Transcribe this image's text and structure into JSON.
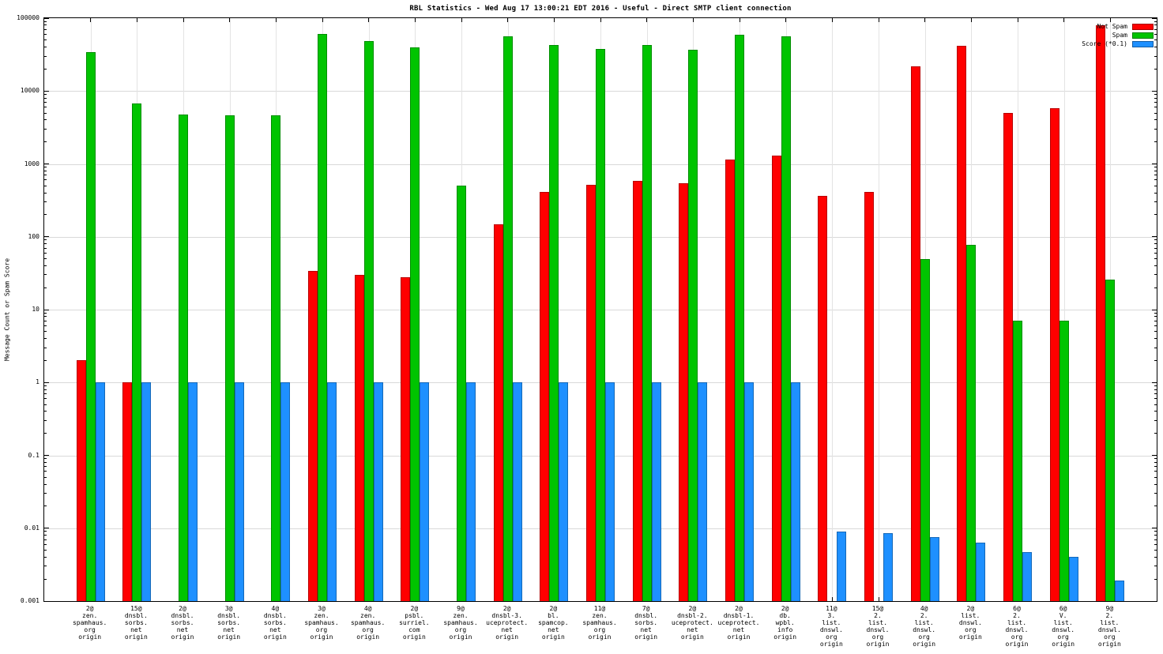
{
  "chart_data": {
    "type": "bar",
    "title": "RBL Statistics - Wed Aug 17 13:00:21 EDT 2016 - Useful - Direct SMTP client connection",
    "ylabel": "Message Count or Spam Score",
    "xlabel": "",
    "y_scale": "log",
    "ylim": [
      0.001,
      100000
    ],
    "y_ticks": [
      "100000",
      "10000",
      "1000",
      "100",
      "10",
      "1",
      "0.1",
      "0.01",
      "0.001"
    ],
    "grid": true,
    "legend_position": "top-right",
    "categories": [
      [
        "2@",
        "zen.",
        "spamhaus.",
        "org",
        "origin"
      ],
      [
        "15@",
        "dnsbl.",
        "sorbs.",
        "net",
        "origin"
      ],
      [
        "2@",
        "dnsbl.",
        "sorbs.",
        "net",
        "origin"
      ],
      [
        "3@",
        "dnsbl.",
        "sorbs.",
        "net",
        "origin"
      ],
      [
        "4@",
        "dnsbl.",
        "sorbs.",
        "net",
        "origin"
      ],
      [
        "3@",
        "zen.",
        "spamhaus.",
        "org",
        "origin"
      ],
      [
        "4@",
        "zen.",
        "spamhaus.",
        "org",
        "origin"
      ],
      [
        "2@",
        "psbl.",
        "surriel.",
        "com",
        "origin"
      ],
      [
        "9@",
        "zen.",
        "spamhaus.",
        "org",
        "origin"
      ],
      [
        "2@",
        "dnsbl-3.",
        "uceprotect.",
        "net",
        "origin"
      ],
      [
        "2@",
        "bl.",
        "spamcop.",
        "net",
        "origin"
      ],
      [
        "11@",
        "zen.",
        "spamhaus.",
        "org",
        "origin"
      ],
      [
        "7@",
        "dnsbl.",
        "sorbs.",
        "net",
        "origin"
      ],
      [
        "2@",
        "dnsbl-2.",
        "uceprotect.",
        "net",
        "origin"
      ],
      [
        "2@",
        "dnsbl-1.",
        "uceprotect.",
        "net",
        "origin"
      ],
      [
        "2@",
        "db.",
        "wpbl.",
        "info",
        "origin"
      ],
      [
        "11@",
        "3.",
        "list.",
        "dnswl.",
        "org",
        "origin"
      ],
      [
        "15@",
        "2.",
        "list.",
        "dnswl.",
        "org",
        "origin"
      ],
      [
        "4@",
        "2.",
        "list.",
        "dnswl.",
        "org",
        "origin"
      ],
      [
        "2@",
        "list.",
        "dnswl.",
        "org",
        "origin"
      ],
      [
        "6@",
        "2.",
        "list.",
        "dnswl.",
        "org",
        "origin"
      ],
      [
        "6@",
        "V.",
        "list.",
        "dnswl.",
        "org",
        "origin"
      ],
      [
        "9@",
        "2.",
        "list.",
        "dnswl.",
        "org",
        "origin"
      ]
    ],
    "series": [
      {
        "name": "Not Spam",
        "color": "#ff0000",
        "values": [
          2,
          1,
          null,
          null,
          null,
          34,
          30,
          28,
          null,
          150,
          410,
          520,
          590,
          540,
          1150,
          1300,
          360,
          410,
          22000,
          42000,
          5000,
          5800,
          80000
        ]
      },
      {
        "name": "Spam",
        "color": "#00c400",
        "values": [
          34000,
          6800,
          4800,
          4700,
          4700,
          61000,
          49000,
          40000,
          500,
          56000,
          43000,
          38000,
          43000,
          37000,
          59000,
          56000,
          null,
          null,
          50,
          77,
          7,
          7,
          26
        ]
      },
      {
        "name": "Score (*0.1)",
        "color": "#1e90ff",
        "values": [
          1,
          1,
          1,
          1,
          1,
          1,
          1,
          1,
          1,
          1,
          1,
          1,
          1,
          1,
          1,
          1,
          0.009,
          0.0085,
          0.0076,
          0.0063,
          0.0047,
          0.004,
          0.0019
        ]
      }
    ]
  }
}
